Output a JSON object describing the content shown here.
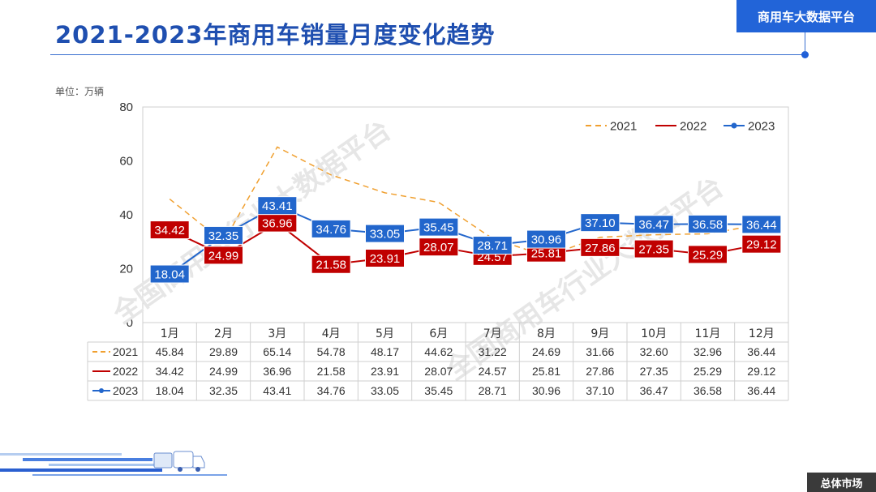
{
  "header": {
    "title": "2021-2023年商用车销量月度变化趋势",
    "brand": "商用车大数据平台"
  },
  "unit_label": "单位：万辆",
  "watermark": "全国商用车行业大数据平台",
  "footer_tag": "总体市场",
  "chart_data": {
    "type": "line",
    "categories": [
      "1月",
      "2月",
      "3月",
      "4月",
      "5月",
      "6月",
      "7月",
      "8月",
      "9月",
      "10月",
      "11月",
      "12月"
    ],
    "ylim": [
      0,
      80
    ],
    "yticks": [
      0,
      20,
      40,
      60,
      80
    ],
    "grid": false,
    "legend": "top-right",
    "series": [
      {
        "name": "2021",
        "color": "#f0a030",
        "style": "dashed",
        "values": [
          45.84,
          29.89,
          65.14,
          54.78,
          48.17,
          44.62,
          31.22,
          24.69,
          31.66,
          32.6,
          32.96,
          36.44
        ],
        "labels": [
          "45.84",
          "29.89",
          "65.14",
          "54.78",
          "48.17",
          "44.62",
          "31.22",
          "24.69",
          "31.66",
          "32.60",
          "32.96",
          "36.44"
        ]
      },
      {
        "name": "2022",
        "color": "#c00000",
        "style": "solid",
        "values": [
          34.42,
          24.99,
          36.96,
          21.58,
          23.91,
          28.07,
          24.57,
          25.81,
          27.86,
          27.35,
          25.29,
          29.12
        ],
        "labels": [
          "34.42",
          "24.99",
          "36.96",
          "21.58",
          "23.91",
          "28.07",
          "24.57",
          "25.81",
          "27.86",
          "27.35",
          "25.29",
          "29.12"
        ]
      },
      {
        "name": "2023",
        "color": "#2266cc",
        "style": "solid-marker",
        "values": [
          18.04,
          32.35,
          43.41,
          34.76,
          33.05,
          35.45,
          28.71,
          30.96,
          37.1,
          36.47,
          36.58,
          36.44
        ],
        "labels": [
          "18.04",
          "32.35",
          "43.41",
          "34.76",
          "33.05",
          "35.45",
          "28.71",
          "30.96",
          "37.10",
          "36.47",
          "36.58",
          "36.44"
        ]
      }
    ]
  }
}
